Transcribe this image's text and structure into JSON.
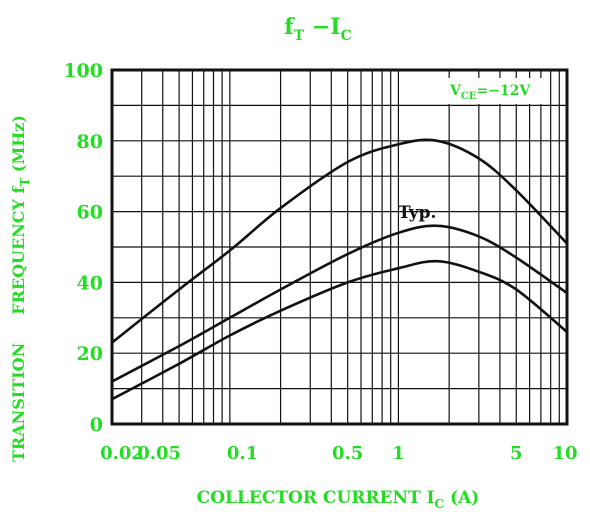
{
  "colors": {
    "label": "#22dd22",
    "curve": "#111111",
    "grid": "#111111",
    "background": "#ffffff"
  },
  "chart_data": {
    "type": "line",
    "title": {
      "main": "f",
      "main_sub": "T",
      "sep": " −I",
      "sep_sub": "C"
    },
    "xlabel": {
      "main": "COLLECTOR CURRENT I",
      "sub": "C",
      "tail": " (A)"
    },
    "ylabel": {
      "lead": "TRANSITION",
      "main": "FREQUENCY f",
      "sub": "T",
      "tail": " (MHz)"
    },
    "condition": {
      "main": "V",
      "sub": "CE",
      "tail": "=−12V"
    },
    "annotation": "Typ.",
    "x_scale": "log",
    "xlim": [
      0.02,
      10
    ],
    "ylim": [
      0,
      100
    ],
    "grid": true,
    "x_ticks": [
      {
        "value": 0.02,
        "label": "0.02"
      },
      {
        "value": 0.05,
        "label": "0.05"
      },
      {
        "value": 0.1,
        "label": "0.1"
      },
      {
        "value": 0.5,
        "label": "0.5"
      },
      {
        "value": 1,
        "label": "1"
      },
      {
        "value": 5,
        "label": "5"
      },
      {
        "value": 10,
        "label": "10"
      }
    ],
    "y_ticks": [
      {
        "value": 0,
        "label": "0"
      },
      {
        "value": 20,
        "label": "20"
      },
      {
        "value": 40,
        "label": "40"
      },
      {
        "value": 60,
        "label": "60"
      },
      {
        "value": 80,
        "label": "80"
      },
      {
        "value": 100,
        "label": "100"
      }
    ],
    "series": [
      {
        "x": [
          0.02,
          0.05,
          0.1,
          0.2,
          0.5,
          1,
          1.7,
          3,
          5,
          10
        ],
        "y": [
          23,
          38,
          49,
          61,
          74,
          79,
          80,
          75,
          66,
          51
        ]
      },
      {
        "x": [
          0.02,
          0.05,
          0.1,
          0.2,
          0.5,
          1,
          1.7,
          3,
          5,
          10
        ],
        "y": [
          12,
          22,
          30,
          38,
          48,
          54,
          56,
          53,
          47,
          37
        ]
      },
      {
        "x": [
          0.02,
          0.05,
          0.1,
          0.2,
          0.5,
          1,
          1.7,
          3,
          5,
          10
        ],
        "y": [
          7,
          17,
          25,
          32,
          40,
          44,
          46,
          43,
          38,
          26
        ]
      }
    ]
  }
}
